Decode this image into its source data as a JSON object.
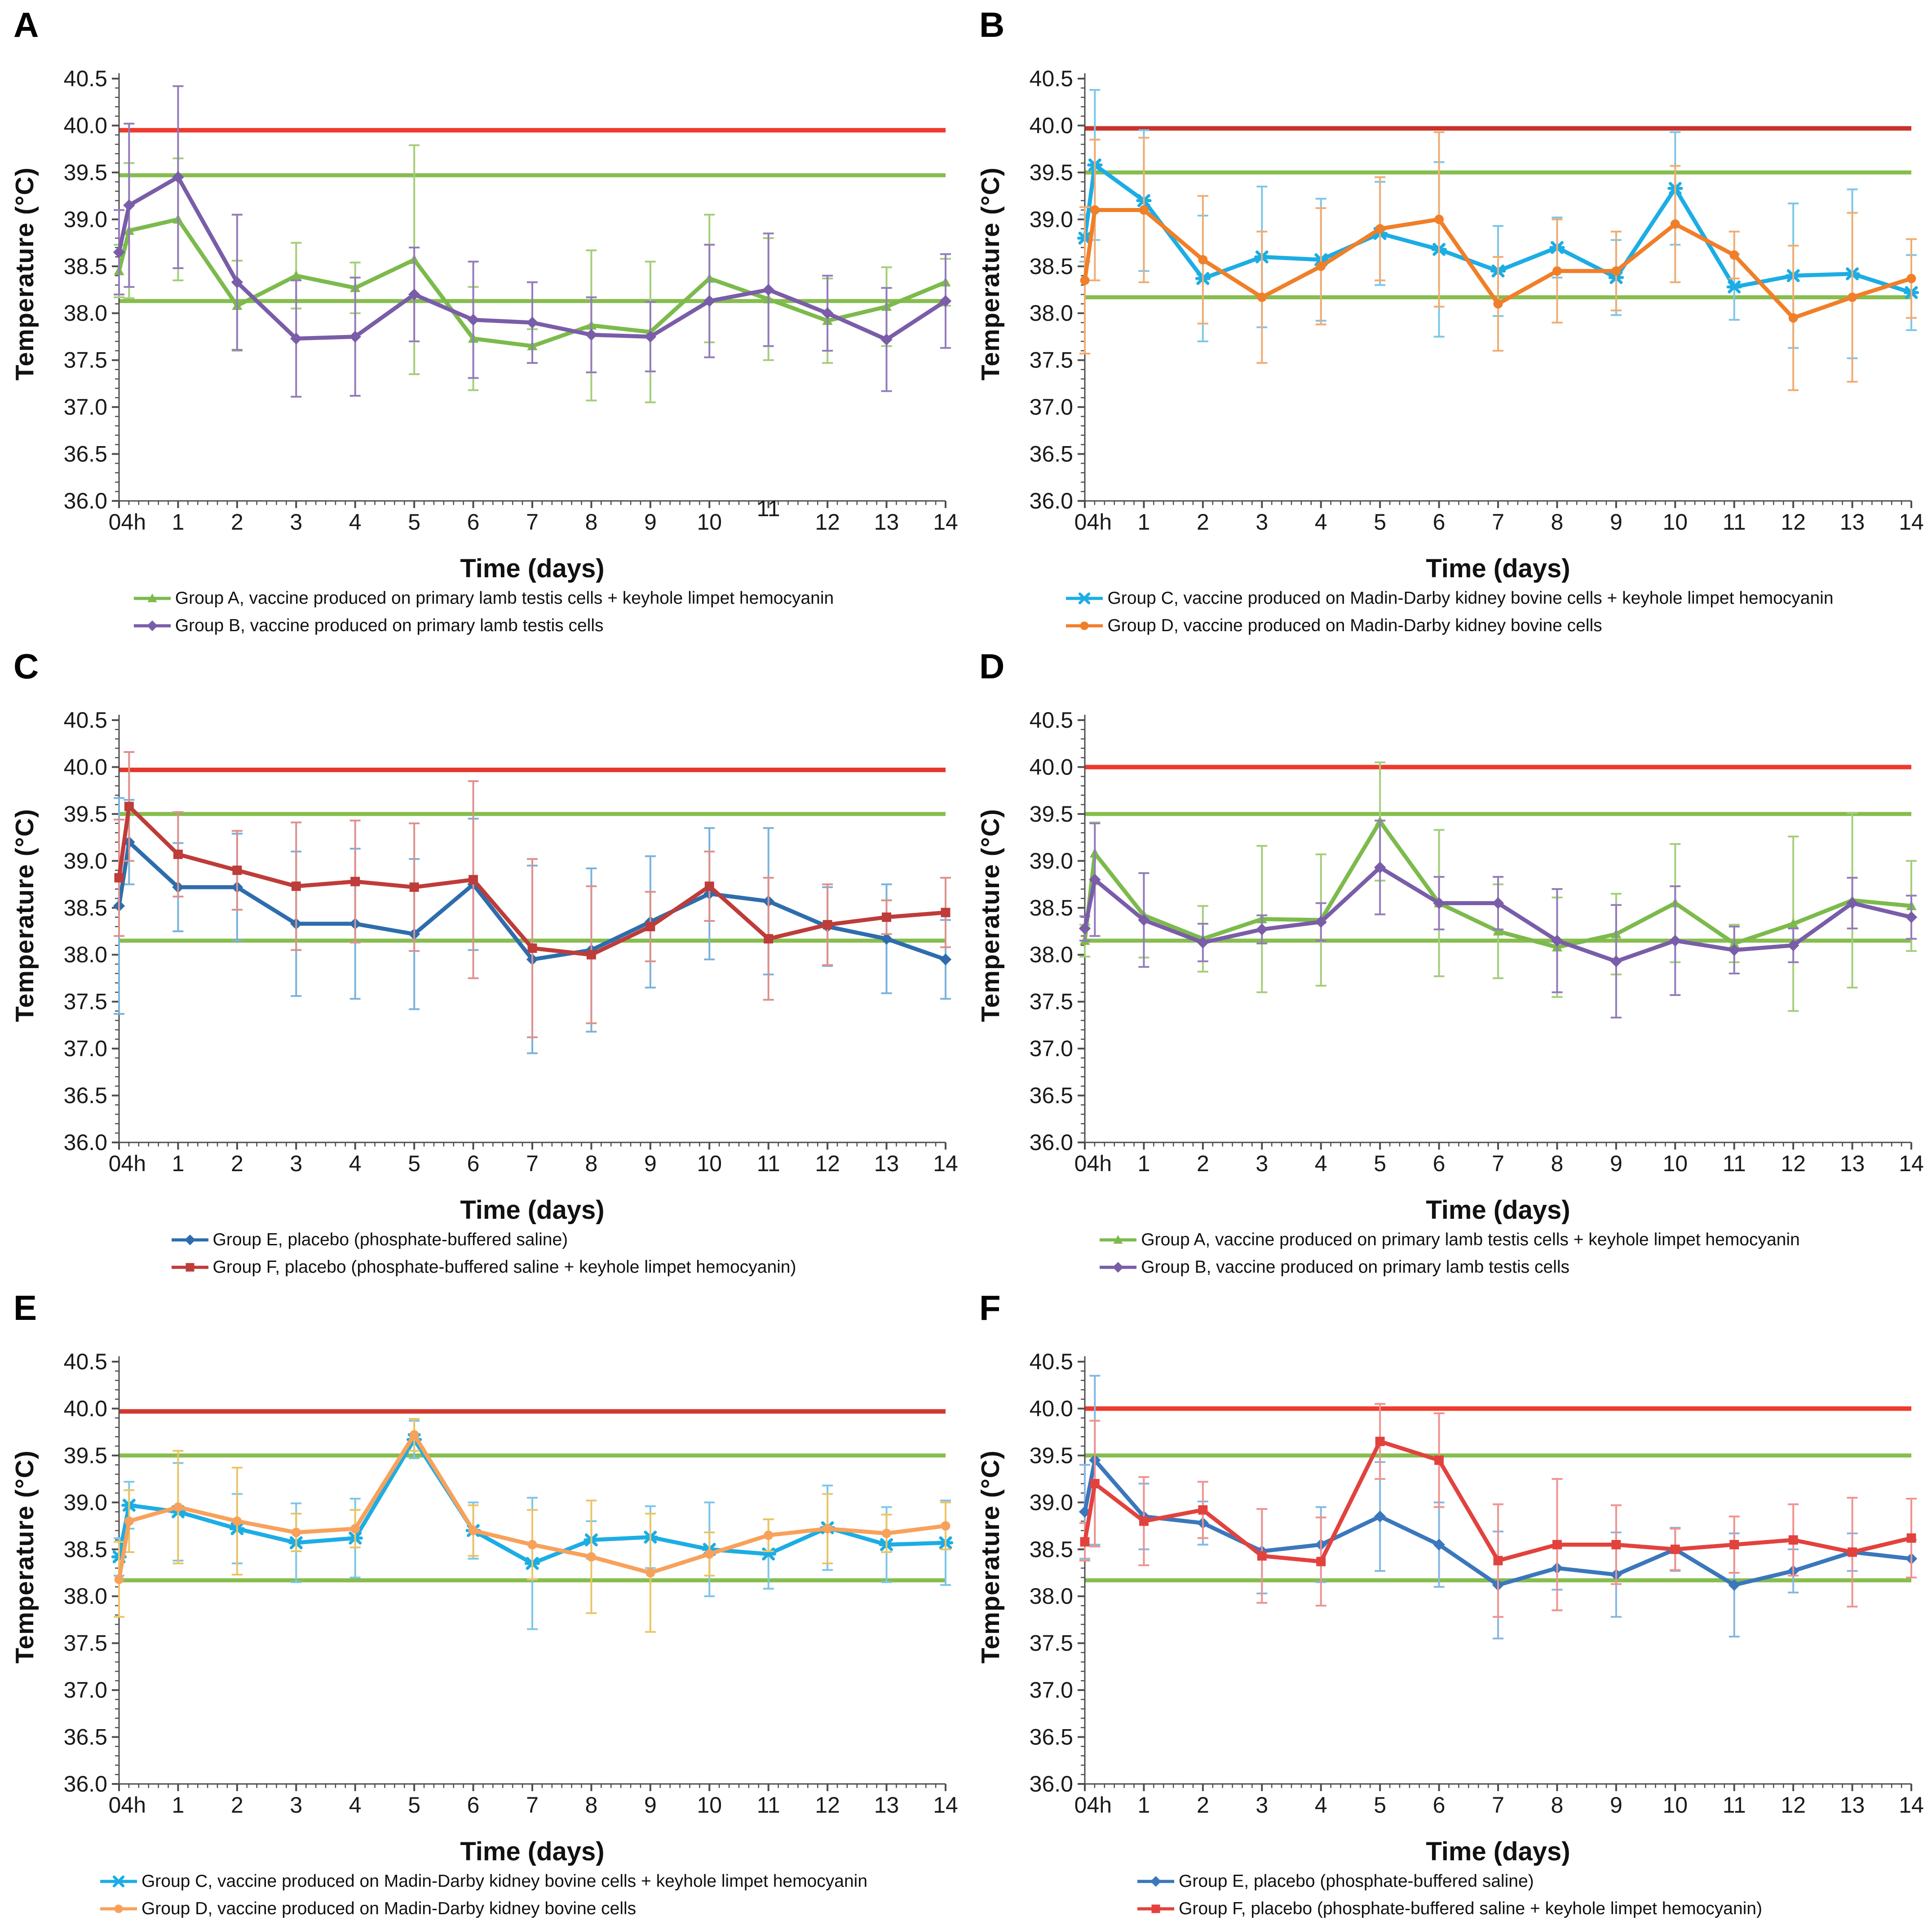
{
  "chart_data": [
    {
      "type": "line",
      "panel_label": "A",
      "xlabel": "Time (days)",
      "ylabel": "Temperature (°C)",
      "ylim": [
        36.0,
        40.5
      ],
      "grid": false,
      "legend_position": "bottom",
      "y_ticks": [
        "36.0",
        "36.5",
        "37.0",
        "37.5",
        "38.0",
        "38.5",
        "39.0",
        "39.5",
        "40.0",
        "40.5"
      ],
      "x_tick_labels": [
        "04h",
        "1",
        "2",
        "3",
        "4",
        "5",
        "6",
        "7",
        "8",
        "9",
        "10",
        "11",
        "12",
        "13",
        "14"
      ],
      "x_tick_offsets": {
        "11": -30
      },
      "x_days": [
        0,
        0.17,
        1,
        2,
        3,
        4,
        5,
        6,
        7,
        8,
        9,
        10,
        11,
        12,
        13,
        14
      ],
      "ref_lines": {
        "fever": 39.95,
        "fever_color": "#EF3A2D",
        "normal_upper": 39.47,
        "normal_lower": 38.13,
        "normal_color": "#86BD4E"
      },
      "series": [
        {
          "label": "Group A, vaccine produced on primary lamb testis cells + keyhole limpet hemocyanin",
          "color": "#7CBA4C",
          "err_color": "#A3CE78",
          "marker": "triangle",
          "values": [
            38.45,
            38.88,
            39.0,
            38.08,
            38.4,
            38.27,
            38.57,
            37.73,
            37.65,
            37.87,
            37.8,
            38.37,
            38.15,
            37.92,
            38.07,
            38.33
          ],
          "errors": [
            0.28,
            0.72,
            0.65,
            0.48,
            0.35,
            0.27,
            1.22,
            0.55,
            0.18,
            0.8,
            0.75,
            0.68,
            0.65,
            0.45,
            0.42,
            0.25
          ]
        },
        {
          "label": "Group B, vaccine produced on primary lamb testis cells",
          "color": "#7A5DA8",
          "err_color": "#937BBB",
          "marker": "diamond",
          "values": [
            38.65,
            39.15,
            39.45,
            38.33,
            37.73,
            37.75,
            38.2,
            37.93,
            37.9,
            37.77,
            37.75,
            38.13,
            38.25,
            38.0,
            37.72,
            38.13
          ],
          "errors": [
            0.45,
            0.87,
            0.97,
            0.72,
            0.62,
            0.63,
            0.5,
            0.62,
            0.43,
            0.4,
            0.37,
            0.6,
            0.6,
            0.4,
            0.55,
            0.5
          ]
        }
      ]
    },
    {
      "type": "line",
      "panel_label": "B",
      "xlabel": "Time (days)",
      "ylabel": "Temperature (°C)",
      "ylim": [
        36.0,
        40.5
      ],
      "grid": false,
      "legend_position": "bottom",
      "y_ticks": [
        "36.0",
        "36.5",
        "37.0",
        "37.5",
        "38.0",
        "38.5",
        "39.0",
        "39.5",
        "40.0",
        "40.5"
      ],
      "x_tick_labels": [
        "04h",
        "1",
        "2",
        "3",
        "4",
        "5",
        "6",
        "7",
        "8",
        "9",
        "10",
        "11",
        "12",
        "13",
        "14"
      ],
      "x_days": [
        0,
        0.17,
        1,
        2,
        3,
        4,
        5,
        6,
        7,
        8,
        9,
        10,
        11,
        12,
        13,
        14
      ],
      "ref_lines": {
        "fever": 39.97,
        "fever_color": "#C9332B",
        "normal_upper": 39.5,
        "normal_lower": 38.17,
        "normal_color": "#86BD4E"
      },
      "series": [
        {
          "label": "Group C, vaccine produced on Madin-Darby kidney bovine cells + keyhole limpet hemocyanin",
          "color": "#1CADE4",
          "err_color": "#7CC6E8",
          "marker": "x",
          "values": [
            38.8,
            39.58,
            39.2,
            38.37,
            38.6,
            38.57,
            38.85,
            38.68,
            38.45,
            38.7,
            38.38,
            39.33,
            38.28,
            38.4,
            38.42,
            38.22
          ],
          "errors": [
            0.25,
            0.8,
            0.75,
            0.67,
            0.75,
            0.65,
            0.55,
            0.93,
            0.48,
            0.32,
            0.4,
            0.6,
            0.35,
            0.77,
            0.9,
            0.4
          ]
        },
        {
          "label": "Group D, vaccine produced on Madin-Darby kidney bovine cells",
          "color": "#F07F29",
          "err_color": "#F0AC73",
          "marker": "circle",
          "values": [
            38.35,
            39.1,
            39.1,
            38.57,
            38.17,
            38.5,
            38.9,
            39.0,
            38.1,
            38.45,
            38.45,
            38.95,
            38.62,
            37.95,
            38.17,
            38.37
          ],
          "errors": [
            0.78,
            0.75,
            0.77,
            0.68,
            0.7,
            0.62,
            0.55,
            0.93,
            0.5,
            0.55,
            0.42,
            0.62,
            0.25,
            0.77,
            0.9,
            0.42
          ]
        }
      ]
    },
    {
      "type": "line",
      "panel_label": "C",
      "xlabel": "Time (days)",
      "ylabel": "Temperature (°C)",
      "ylim": [
        36.0,
        40.5
      ],
      "grid": false,
      "legend_position": "bottom",
      "y_ticks": [
        "36.0",
        "36.5",
        "37.0",
        "37.5",
        "38.0",
        "38.5",
        "39.0",
        "39.5",
        "40.0",
        "40.5"
      ],
      "x_tick_labels": [
        "04h",
        "1",
        "2",
        "3",
        "4",
        "5",
        "6",
        "7",
        "8",
        "9",
        "10",
        "11",
        "12",
        "13",
        "14"
      ],
      "x_days": [
        0,
        0.17,
        1,
        2,
        3,
        4,
        5,
        6,
        7,
        8,
        9,
        10,
        11,
        12,
        13,
        14
      ],
      "ref_lines": {
        "fever": 39.97,
        "fever_color": "#E5352C",
        "normal_upper": 39.5,
        "normal_lower": 38.15,
        "normal_color": "#86BD4E"
      },
      "series": [
        {
          "label": "Group E, placebo (phosphate-buffered saline)",
          "color": "#2E6DAD",
          "err_color": "#79B2DB",
          "marker": "diamond",
          "values": [
            38.52,
            39.2,
            38.72,
            38.72,
            38.33,
            38.33,
            38.22,
            38.75,
            37.95,
            38.05,
            38.35,
            38.65,
            38.57,
            38.3,
            38.17,
            37.95
          ],
          "errors": [
            1.15,
            0.45,
            0.47,
            0.57,
            0.77,
            0.8,
            0.8,
            0.7,
            1.0,
            0.87,
            0.7,
            0.7,
            0.78,
            0.42,
            0.58,
            0.42
          ]
        },
        {
          "label": "Group F, placebo (phosphate-buffered saline + keyhole limpet hemocyanin)",
          "color": "#BE3C39",
          "err_color": "#DD908C",
          "marker": "square",
          "values": [
            38.82,
            39.58,
            39.07,
            38.9,
            38.73,
            38.78,
            38.72,
            38.8,
            38.07,
            38.0,
            38.3,
            38.73,
            38.17,
            38.32,
            38.4,
            38.45
          ],
          "errors": [
            0.62,
            0.58,
            0.45,
            0.42,
            0.68,
            0.65,
            0.68,
            1.05,
            0.95,
            0.73,
            0.37,
            0.37,
            0.65,
            0.43,
            0.18,
            0.37
          ]
        }
      ]
    },
    {
      "type": "line",
      "panel_label": "D",
      "xlabel": "Time (days)",
      "ylabel": "Temperature (°C)",
      "ylim": [
        36.0,
        40.5
      ],
      "grid": false,
      "legend_position": "bottom",
      "y_ticks": [
        "36.0",
        "36.5",
        "37.0",
        "37.5",
        "38.0",
        "38.5",
        "39.0",
        "39.5",
        "40.0",
        "40.5"
      ],
      "x_tick_labels": [
        "04h",
        "1",
        "2",
        "3",
        "4",
        "5",
        "6",
        "7",
        "8",
        "9",
        "10",
        "11",
        "12",
        "13",
        "14"
      ],
      "x_days": [
        0,
        0.17,
        1,
        2,
        3,
        4,
        5,
        6,
        7,
        8,
        9,
        10,
        11,
        12,
        13,
        14
      ],
      "ref_lines": {
        "fever": 40.0,
        "fever_color": "#EF3A2D",
        "normal_upper": 39.5,
        "normal_lower": 38.15,
        "normal_color": "#86BD4E"
      },
      "series": [
        {
          "label": "Group A, vaccine produced on primary lamb testis cells + keyhole limpet hemocyanin",
          "color": "#7CBA4C",
          "err_color": "#A3CE78",
          "marker": "triangle",
          "values": [
            38.15,
            39.08,
            38.42,
            38.17,
            38.38,
            38.37,
            39.42,
            38.55,
            38.25,
            38.08,
            38.22,
            38.55,
            38.12,
            38.33,
            38.58,
            38.52
          ],
          "errors": [
            0.17,
            0.33,
            0.45,
            0.35,
            0.78,
            0.7,
            0.63,
            0.78,
            0.5,
            0.53,
            0.43,
            0.63,
            0.2,
            0.93,
            0.93,
            0.48
          ]
        },
        {
          "label": "Group B, vaccine produced on primary lamb testis cells",
          "color": "#7A5DA8",
          "err_color": "#937BBB",
          "marker": "diamond",
          "values": [
            38.28,
            38.8,
            38.37,
            38.13,
            38.27,
            38.35,
            38.93,
            38.55,
            38.55,
            38.15,
            37.93,
            38.15,
            38.05,
            38.1,
            38.55,
            38.4
          ],
          "errors": [
            0.13,
            0.6,
            0.5,
            0.2,
            0.15,
            0.2,
            0.5,
            0.28,
            0.28,
            0.55,
            0.6,
            0.58,
            0.25,
            0.18,
            0.27,
            0.23
          ]
        }
      ]
    },
    {
      "type": "line",
      "panel_label": "E",
      "xlabel": "Time (days)",
      "ylabel": "Temperature (°C)",
      "ylim": [
        36.0,
        40.5
      ],
      "grid": false,
      "legend_position": "bottom",
      "y_ticks": [
        "36.0",
        "36.5",
        "37.0",
        "37.5",
        "38.0",
        "38.5",
        "39.0",
        "39.5",
        "40.0",
        "40.5"
      ],
      "x_tick_labels": [
        "04h",
        "1",
        "2",
        "3",
        "4",
        "5",
        "6",
        "7",
        "8",
        "9",
        "10",
        "11",
        "12",
        "13",
        "14"
      ],
      "x_days": [
        0,
        0.17,
        1,
        2,
        3,
        4,
        5,
        6,
        7,
        8,
        9,
        10,
        11,
        12,
        13,
        14
      ],
      "ref_lines": {
        "fever": 39.97,
        "fever_color": "#D5382E",
        "normal_upper": 39.5,
        "normal_lower": 38.17,
        "normal_color": "#86BD4E"
      },
      "series": [
        {
          "label": "Group C, vaccine produced on Madin-Darby kidney bovine cells + keyhole limpet hemocyanin",
          "color": "#1CADE4",
          "err_color": "#7CC6E8",
          "marker": "x",
          "values": [
            38.42,
            38.97,
            38.9,
            38.72,
            38.57,
            38.62,
            39.67,
            38.7,
            38.35,
            38.6,
            38.63,
            38.5,
            38.45,
            38.73,
            38.55,
            38.57
          ],
          "errors": [
            0.2,
            0.25,
            0.52,
            0.37,
            0.42,
            0.42,
            0.2,
            0.3,
            0.7,
            0.2,
            0.33,
            0.5,
            0.37,
            0.45,
            0.4,
            0.45
          ]
        },
        {
          "label": "Group D, vaccine produced on Madin-Darby kidney bovine cells",
          "color": "#F8A15B",
          "err_color": "#ECC464",
          "marker": "circle",
          "values": [
            38.18,
            38.8,
            38.95,
            38.8,
            38.68,
            38.72,
            39.72,
            38.7,
            38.55,
            38.42,
            38.25,
            38.45,
            38.65,
            38.72,
            38.67,
            38.75
          ],
          "errors": [
            0.4,
            0.33,
            0.6,
            0.57,
            0.2,
            0.2,
            0.17,
            0.27,
            0.37,
            0.6,
            0.63,
            0.23,
            0.17,
            0.37,
            0.2,
            0.25
          ]
        }
      ]
    },
    {
      "type": "line",
      "panel_label": "F",
      "xlabel": "Time (days)",
      "ylabel": "Temperature (°C)",
      "ylim": [
        36.0,
        40.5
      ],
      "grid": false,
      "legend_position": "bottom",
      "y_ticks": [
        "36.0",
        "36.5",
        "37.0",
        "37.5",
        "38.0",
        "38.5",
        "39.0",
        "39.5",
        "40.0",
        "40.5"
      ],
      "x_tick_labels": [
        "04h",
        "1",
        "2",
        "3",
        "4",
        "5",
        "6",
        "7",
        "8",
        "9",
        "10",
        "11",
        "12",
        "13",
        "14"
      ],
      "x_days": [
        0,
        0.17,
        1,
        2,
        3,
        4,
        5,
        6,
        7,
        8,
        9,
        10,
        11,
        12,
        13,
        14
      ],
      "ref_lines": {
        "fever": 40.0,
        "fever_color": "#EF3A2D",
        "normal_upper": 39.5,
        "normal_lower": 38.17,
        "normal_color": "#86BD4E"
      },
      "series": [
        {
          "label": "Group E, placebo (phosphate-buffered saline)",
          "color": "#3B77BC",
          "err_color": "#85B7E3",
          "marker": "diamond",
          "values": [
            38.9,
            39.45,
            38.85,
            38.78,
            38.48,
            38.55,
            38.85,
            38.55,
            38.12,
            38.3,
            38.23,
            38.5,
            38.12,
            38.27,
            38.47,
            38.4
          ],
          "errors": [
            0.5,
            0.9,
            0.35,
            0.23,
            0.45,
            0.4,
            0.58,
            0.45,
            0.57,
            0.23,
            0.45,
            0.23,
            0.55,
            0.23,
            0.2,
            0.2
          ]
        },
        {
          "label": "Group F, placebo (phosphate-buffered saline + keyhole limpet hemocyanin)",
          "color": "#E2423E",
          "err_color": "#F0928F",
          "marker": "square",
          "values": [
            38.58,
            39.2,
            38.8,
            38.92,
            38.43,
            38.37,
            39.65,
            39.45,
            38.38,
            38.55,
            38.55,
            38.5,
            38.55,
            38.6,
            38.47,
            38.62
          ],
          "errors": [
            0.2,
            0.67,
            0.47,
            0.3,
            0.5,
            0.47,
            0.4,
            0.5,
            0.6,
            0.7,
            0.42,
            0.22,
            0.3,
            0.38,
            0.58,
            0.42
          ]
        }
      ]
    }
  ]
}
